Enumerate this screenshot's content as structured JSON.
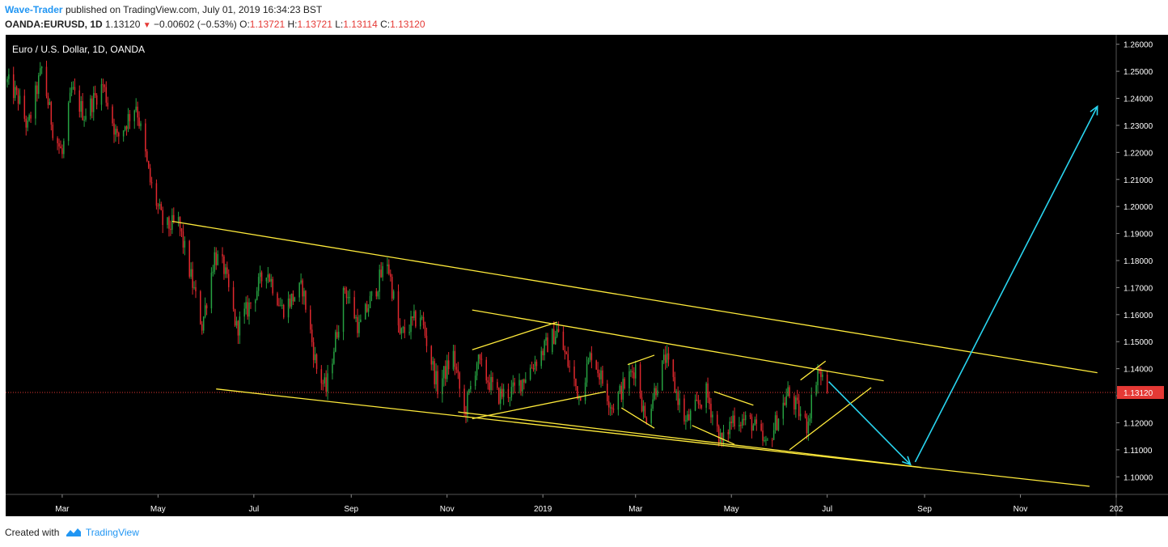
{
  "header": {
    "author": "Wave-Trader",
    "published_text": "published on TradingView.com, July 01, 2019 16:34:23 BST",
    "symbol": "OANDA:EURUSD, 1D",
    "last": "1.13120",
    "change": "−0.00602 (−0.53%)",
    "o_label": "O:",
    "o_value": "1.13721",
    "h_label": "H:",
    "h_value": "1.13721",
    "l_label": "L:",
    "l_value": "1.13114",
    "c_label": "C:",
    "c_value": "1.13120"
  },
  "footer": {
    "created_with": "Created with",
    "brand": "TradingView"
  },
  "colors": {
    "background": "#000000",
    "up_candle": "#26a041",
    "down_candle": "#e0282e",
    "trendline": "#ffeb3b",
    "projection": "#29d5f0",
    "last_price": "#e53935"
  },
  "chart_data": {
    "type": "candlestick",
    "title": "Euro / U.S. Dollar, 1D, OANDA",
    "y_ticks": [
      "1.10000",
      "1.11000",
      "1.12000",
      "1.13000",
      "1.14000",
      "1.15000",
      "1.16000",
      "1.17000",
      "1.18000",
      "1.19000",
      "1.20000",
      "1.21000",
      "1.22000",
      "1.23000",
      "1.24000",
      "1.25000",
      "1.26000"
    ],
    "x_ticks": [
      {
        "label": "Mar",
        "date": "2018-03-01"
      },
      {
        "label": "May",
        "date": "2018-05-01"
      },
      {
        "label": "Jul",
        "date": "2018-07-01"
      },
      {
        "label": "Sep",
        "date": "2018-09-01"
      },
      {
        "label": "Nov",
        "date": "2018-11-01"
      },
      {
        "label": "2019",
        "date": "2019-01-01"
      },
      {
        "label": "Mar",
        "date": "2019-03-01"
      },
      {
        "label": "May",
        "date": "2019-05-01"
      },
      {
        "label": "Jul",
        "date": "2019-07-01"
      },
      {
        "label": "Sep",
        "date": "2019-09-01"
      },
      {
        "label": "Nov",
        "date": "2019-11-01"
      },
      {
        "label": "202",
        "date": "2020-01-01"
      }
    ],
    "x_range": [
      "2018-01-24",
      "2020-01-01"
    ],
    "y_range": [
      1.0935,
      1.2635
    ],
    "last_price": 1.1312,
    "last_price_label": "1.13120",
    "price_path": [
      [
        "2018-01-25",
        1.246
      ],
      [
        "2018-02-01",
        1.24
      ],
      [
        "2018-02-07",
        1.229
      ],
      [
        "2018-02-16",
        1.251
      ],
      [
        "2018-02-23",
        1.229
      ],
      [
        "2018-03-01",
        1.219
      ],
      [
        "2018-03-07",
        1.243
      ],
      [
        "2018-03-15",
        1.234
      ],
      [
        "2018-03-27",
        1.245
      ],
      [
        "2018-04-05",
        1.225
      ],
      [
        "2018-04-17",
        1.238
      ],
      [
        "2018-04-26",
        1.209
      ],
      [
        "2018-05-05",
        1.192
      ],
      [
        "2018-05-14",
        1.194
      ],
      [
        "2018-05-29",
        1.156
      ],
      [
        "2018-06-06",
        1.182
      ],
      [
        "2018-06-12",
        1.177
      ],
      [
        "2018-06-20",
        1.155
      ],
      [
        "2018-06-27",
        1.162
      ],
      [
        "2018-07-09",
        1.177
      ],
      [
        "2018-07-19",
        1.162
      ],
      [
        "2018-08-01",
        1.17
      ],
      [
        "2018-08-10",
        1.14
      ],
      [
        "2018-08-16",
        1.132
      ],
      [
        "2018-08-28",
        1.17
      ],
      [
        "2018-09-06",
        1.155
      ],
      [
        "2018-09-24",
        1.18
      ],
      [
        "2018-10-02",
        1.152
      ],
      [
        "2018-10-15",
        1.16
      ],
      [
        "2018-10-26",
        1.133
      ],
      [
        "2018-11-05",
        1.145
      ],
      [
        "2018-11-12",
        1.123
      ],
      [
        "2018-11-20",
        1.143
      ],
      [
        "2018-12-03",
        1.13
      ],
      [
        "2018-12-14",
        1.132
      ],
      [
        "2019-01-10",
        1.154
      ],
      [
        "2019-01-24",
        1.13
      ],
      [
        "2019-02-01",
        1.146
      ],
      [
        "2019-02-14",
        1.126
      ],
      [
        "2019-03-01",
        1.141
      ],
      [
        "2019-03-07",
        1.121
      ],
      [
        "2019-03-20",
        1.144
      ],
      [
        "2019-04-02",
        1.12
      ],
      [
        "2019-04-15",
        1.131
      ],
      [
        "2019-04-25",
        1.112
      ],
      [
        "2019-05-02",
        1.122
      ],
      [
        "2019-05-14",
        1.12
      ],
      [
        "2019-05-23",
        1.111
      ],
      [
        "2019-06-06",
        1.131
      ],
      [
        "2019-06-18",
        1.119
      ],
      [
        "2019-06-25",
        1.14
      ],
      [
        "2019-07-01",
        1.1312
      ]
    ],
    "trendlines": [
      {
        "from": [
          "2018-05-10",
          1.1945
        ],
        "to": [
          "2019-12-20",
          1.1385
        ]
      },
      {
        "from": [
          "2018-06-07",
          1.1325
        ],
        "to": [
          "2019-12-15",
          1.0965
        ]
      },
      {
        "from": [
          "2018-11-17",
          1.1617
        ],
        "to": [
          "2019-08-06",
          1.1355
        ]
      },
      {
        "from": [
          "2018-11-08",
          1.124
        ],
        "to": [
          "2019-08-30",
          1.1035
        ]
      },
      {
        "from": [
          "2018-11-17",
          1.147
        ],
        "to": [
          "2019-01-10",
          1.1572
        ]
      },
      {
        "from": [
          "2018-11-17",
          1.1215
        ],
        "to": [
          "2019-02-10",
          1.1315
        ]
      },
      {
        "from": [
          "2019-02-24",
          1.1415
        ],
        "to": [
          "2019-03-13",
          1.145
        ]
      },
      {
        "from": [
          "2019-02-20",
          1.1255
        ],
        "to": [
          "2019-03-13",
          1.118
        ]
      },
      {
        "from": [
          "2019-04-06",
          1.119
        ],
        "to": [
          "2019-05-03",
          1.112
        ]
      },
      {
        "from": [
          "2019-04-20",
          1.1315
        ],
        "to": [
          "2019-05-15",
          1.1265
        ]
      },
      {
        "from": [
          "2019-06-14",
          1.1358
        ],
        "to": [
          "2019-06-30",
          1.1428
        ]
      },
      {
        "from": [
          "2019-06-07",
          1.11
        ],
        "to": [
          "2019-07-29",
          1.133
        ]
      }
    ],
    "projections": [
      {
        "from": [
          "2019-07-02",
          1.1352
        ],
        "to": [
          "2019-08-23",
          1.1045
        ]
      },
      {
        "from": [
          "2019-08-26",
          1.1055
        ],
        "to": [
          "2019-12-20",
          1.237
        ]
      }
    ]
  }
}
